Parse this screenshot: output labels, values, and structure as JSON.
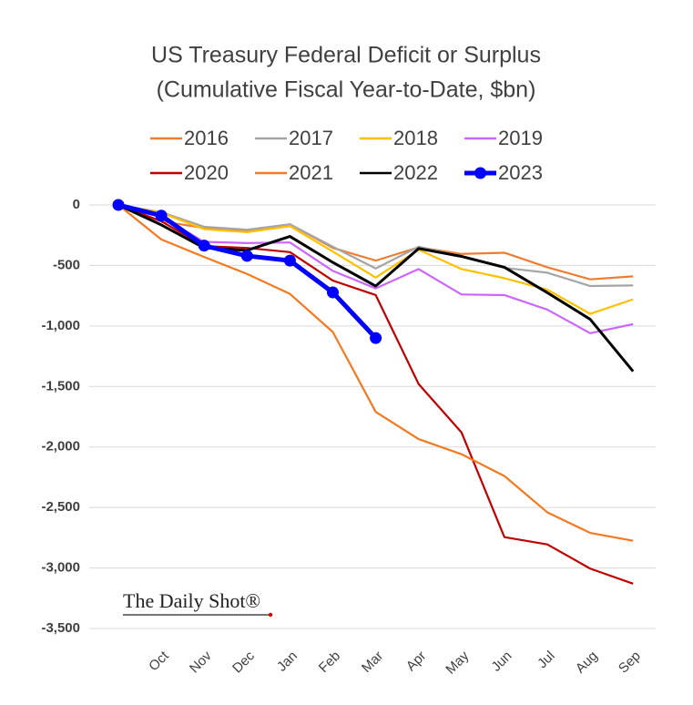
{
  "chart_data": {
    "type": "line",
    "title": "US Treasury Federal Deficit or Surplus",
    "subtitle": "(Cumulative Fiscal Year-to-Date, $bn)",
    "watermark": "The Daily Shot®",
    "categories": [
      null,
      "Oct",
      "Nov",
      "Dec",
      "Jan",
      "Feb",
      "Mar",
      "Apr",
      "May",
      "Jun",
      "Jul",
      "Aug",
      "Sep"
    ],
    "ylim": [
      -3500,
      0
    ],
    "yticks": [
      0,
      -500,
      {
        "value": -1000,
        "label": "-1,000"
      },
      {
        "value": -1500,
        "label": "-1,500"
      },
      {
        "value": -2000,
        "label": "-2,000"
      },
      {
        "value": -2500,
        "label": "-2,500"
      },
      {
        "value": -3000,
        "label": "-3,000"
      },
      {
        "value": -3500,
        "label": "-3,500"
      }
    ],
    "grid": true,
    "legend": "top",
    "series": [
      {
        "name": "2016",
        "color": "#ed7d31",
        "values": [
          0,
          -135,
          -190,
          -215,
          -160,
          -355,
          -460,
          -350,
          -405,
          -395,
          -515,
          -615,
          -590
        ]
      },
      {
        "name": "2017",
        "color": "#a5a5a5",
        "values": [
          0,
          -60,
          -180,
          -205,
          -160,
          -345,
          -525,
          -345,
          -425,
          -520,
          -560,
          -670,
          -665
        ]
      },
      {
        "name": "2018",
        "color": "#ffc000",
        "values": [
          0,
          -65,
          -200,
          -225,
          -175,
          -385,
          -600,
          -370,
          -530,
          -605,
          -700,
          -900,
          -780
        ]
      },
      {
        "name": "2019",
        "color": "#cc66ff",
        "values": [
          0,
          -100,
          -305,
          -315,
          -310,
          -545,
          -690,
          -530,
          -740,
          -745,
          -865,
          -1060,
          -985
        ]
      },
      {
        "name": "2020",
        "color": "#c00000",
        "values": [
          0,
          -135,
          -340,
          -355,
          -390,
          -625,
          -745,
          -1480,
          -1880,
          -2745,
          -2805,
          -3005,
          -3130
        ]
      },
      {
        "name": "2021",
        "color": "#f47920",
        "values": [
          0,
          -285,
          -430,
          -570,
          -735,
          -1050,
          -1710,
          -1935,
          -2060,
          -2240,
          -2540,
          -2710,
          -2775
        ]
      },
      {
        "name": "2022",
        "color": "#000000",
        "values": [
          0,
          -165,
          -355,
          -375,
          -260,
          -475,
          -670,
          -360,
          -425,
          -515,
          -725,
          -945,
          -1375
        ]
      },
      {
        "name": "2023",
        "color": "#0000ff",
        "markers": true,
        "values": [
          0,
          -88,
          -336,
          -421,
          -460,
          -723,
          -1100,
          null,
          null,
          null,
          null,
          null,
          null
        ]
      }
    ]
  }
}
